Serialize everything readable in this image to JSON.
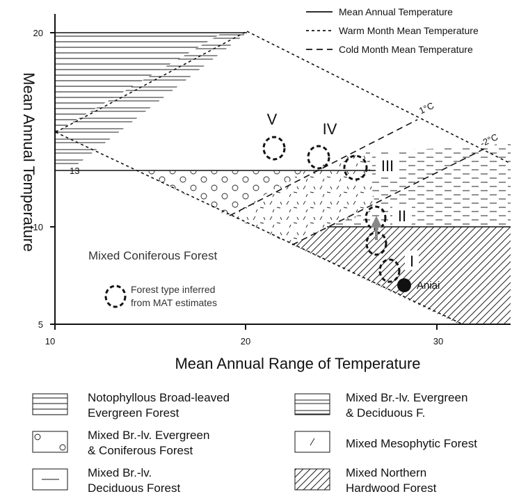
{
  "axes": {
    "y_label": "Mean Annual Temperature",
    "x_label": "Mean Annual Range of Temperature",
    "x_ticks": [
      "10",
      "20",
      "30"
    ],
    "y_ticks": [
      "5",
      "10",
      "20"
    ],
    "y_special_tick": "13"
  },
  "legend_lines": [
    "Mean Annual Temperature",
    "Warm Month Mean Temperature",
    "Cold Month Mean Temperature"
  ],
  "line_labels": {
    "one_c": "1°C",
    "minus_two_c": "-2°C"
  },
  "zones": {
    "i": "I",
    "ii": "II",
    "iii": "III",
    "iv": "IV",
    "v": "V"
  },
  "region_label": "Mixed Coniferous Forest",
  "site_label": "Aniai",
  "inferred_note": [
    "Forest type inferred",
    "from MAT estimates"
  ],
  "forest_legend": [
    [
      "Notophyllous Broad-leaved",
      "Evergreen Forest"
    ],
    [
      "Mixed Br.-lv. Evergreen",
      "& Deciduous F."
    ],
    [
      "Mixed Br.-lv. Evergreen",
      "& Coniferous Forest"
    ],
    [
      "Mixed Mesophytic Forest"
    ],
    [
      "Mixed Br.-lv.",
      "Deciduous Forest"
    ],
    [
      "Mixed Northern",
      "Hardwood Forest"
    ]
  ]
}
